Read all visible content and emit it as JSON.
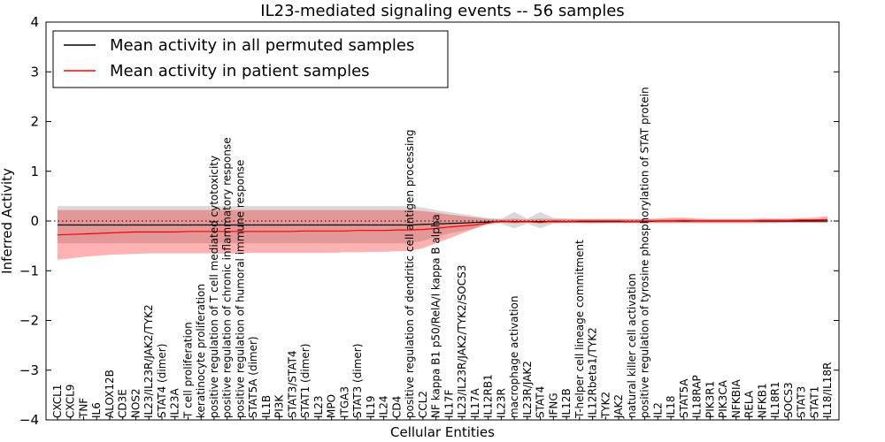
{
  "chart_data": {
    "type": "line",
    "title": "IL23-mediated signaling events -- 56 samples",
    "xlabel": "Cellular Entities",
    "ylabel": "Inferred Activity",
    "ylim": [
      -4,
      4
    ],
    "yticks": [
      -4,
      -3,
      -2,
      -1,
      0,
      1,
      2,
      3,
      4
    ],
    "grid": false,
    "legend_position": "top-left",
    "categories": [
      "CXCL1",
      "CXCL9",
      "TNF",
      "IL6",
      "ALOX12B",
      "CD3E",
      "NOS2",
      "IL23/IL23R/JAK2/TYK2",
      "STAT4 (dimer)",
      "IL23A",
      "T cell proliferation",
      "keratinocyte proliferation",
      "positive regulation of T cell mediated cytotoxicity",
      "positive regulation of chronic inflammatory response",
      "positive regulation of humoral immune response",
      "STAT5A (dimer)",
      "IL1B",
      "PI3K",
      "STAT3/STAT4",
      "STAT1 (dimer)",
      "IL23",
      "MPO",
      "ITGA3",
      "STAT3 (dimer)",
      "IL19",
      "IL24",
      "CD4",
      "positive regulation of dendritic cell antigen processing",
      "CCL2",
      "NF kappa B1 p50/RelA/I kappa B alpha",
      "IL17F",
      "IL23/IL23R/JAK2/TYK2/SOCS3",
      "IL17A",
      "IL12RB1",
      "IL23R",
      "macrophage activation",
      "IL23R/JAK2",
      "STAT4",
      "IFNG",
      "IL12B",
      "T-helper cell lineage commitment",
      "IL12Rbeta1/TYK2",
      "TYK2",
      "JAK2",
      "natural killer cell activation",
      "positive regulation of tyrosine phosphorylation of STAT protein",
      "IL2",
      "IL18",
      "STAT5A",
      "IL18RAP",
      "PIK3R1",
      "PIK3CA",
      "NFKBIA",
      "RELA",
      "NFKB1",
      "IL18R1",
      "SOCS3",
      "STAT3",
      "STAT1",
      "IL18/IL18R"
    ],
    "series": [
      {
        "name": "Mean activity in all permuted samples",
        "color": "#000000",
        "values": [
          -0.08,
          -0.08,
          -0.08,
          -0.08,
          -0.08,
          -0.08,
          -0.08,
          -0.08,
          -0.08,
          -0.08,
          -0.08,
          -0.08,
          -0.08,
          -0.08,
          -0.08,
          -0.08,
          -0.08,
          -0.08,
          -0.08,
          -0.08,
          -0.08,
          -0.08,
          -0.08,
          -0.08,
          -0.08,
          -0.08,
          -0.08,
          -0.08,
          -0.07,
          -0.06,
          -0.05,
          -0.04,
          -0.03,
          -0.02,
          -0.01,
          -0.01,
          -0.01,
          -0.01,
          -0.01,
          -0.01,
          -0.01,
          -0.01,
          -0.01,
          -0.01,
          -0.01,
          -0.01,
          0.0,
          0.0,
          0.0,
          0.0,
          0.0,
          0.0,
          0.0,
          0.0,
          0.0,
          0.0,
          0.0,
          0.0,
          0.0,
          0.0
        ],
        "band_lower": [
          -0.45,
          -0.45,
          -0.45,
          -0.45,
          -0.45,
          -0.45,
          -0.45,
          -0.45,
          -0.45,
          -0.45,
          -0.45,
          -0.45,
          -0.45,
          -0.45,
          -0.45,
          -0.45,
          -0.45,
          -0.45,
          -0.45,
          -0.45,
          -0.45,
          -0.45,
          -0.45,
          -0.45,
          -0.45,
          -0.45,
          -0.45,
          -0.45,
          -0.4,
          -0.32,
          -0.25,
          -0.2,
          -0.15,
          -0.08,
          -0.05,
          -0.15,
          -0.05,
          -0.15,
          -0.05,
          -0.04,
          -0.04,
          -0.04,
          -0.04,
          -0.04,
          -0.04,
          -0.04,
          -0.04,
          -0.04,
          -0.04,
          -0.04,
          -0.04,
          -0.04,
          -0.04,
          -0.04,
          -0.04,
          -0.04,
          -0.04,
          -0.04,
          -0.04,
          -0.04
        ],
        "band_upper": [
          0.3,
          0.3,
          0.3,
          0.3,
          0.3,
          0.3,
          0.3,
          0.3,
          0.3,
          0.3,
          0.3,
          0.3,
          0.3,
          0.3,
          0.3,
          0.3,
          0.3,
          0.3,
          0.3,
          0.3,
          0.3,
          0.3,
          0.3,
          0.3,
          0.3,
          0.3,
          0.3,
          0.3,
          0.27,
          0.22,
          0.18,
          0.14,
          0.1,
          0.06,
          0.05,
          0.18,
          0.05,
          0.18,
          0.06,
          0.05,
          0.04,
          0.04,
          0.04,
          0.04,
          0.04,
          0.04,
          0.04,
          0.04,
          0.04,
          0.04,
          0.04,
          0.04,
          0.04,
          0.04,
          0.04,
          0.04,
          0.04,
          0.04,
          0.04,
          0.04
        ]
      },
      {
        "name": "Mean activity in patient samples",
        "color": "#ff0000",
        "values": [
          -0.28,
          -0.27,
          -0.26,
          -0.25,
          -0.24,
          -0.23,
          -0.22,
          -0.22,
          -0.22,
          -0.22,
          -0.21,
          -0.21,
          -0.21,
          -0.21,
          -0.21,
          -0.21,
          -0.21,
          -0.21,
          -0.21,
          -0.2,
          -0.2,
          -0.2,
          -0.2,
          -0.19,
          -0.19,
          -0.19,
          -0.18,
          -0.18,
          -0.17,
          -0.15,
          -0.12,
          -0.1,
          -0.08,
          -0.04,
          0.0,
          -0.02,
          -0.01,
          -0.03,
          0.0,
          -0.01,
          0.0,
          0.0,
          0.0,
          0.0,
          -0.01,
          0.0,
          0.0,
          0.0,
          0.01,
          0.0,
          0.0,
          0.0,
          0.0,
          0.0,
          0.01,
          0.01,
          0.01,
          0.02,
          0.02,
          0.03
        ],
        "band_lower": [
          -0.78,
          -0.75,
          -0.72,
          -0.7,
          -0.68,
          -0.67,
          -0.66,
          -0.65,
          -0.65,
          -0.65,
          -0.65,
          -0.65,
          -0.65,
          -0.65,
          -0.65,
          -0.64,
          -0.64,
          -0.64,
          -0.64,
          -0.64,
          -0.64,
          -0.64,
          -0.63,
          -0.63,
          -0.62,
          -0.62,
          -0.61,
          -0.6,
          -0.55,
          -0.45,
          -0.35,
          -0.25,
          -0.15,
          -0.05,
          -0.03,
          -0.05,
          -0.03,
          -0.05,
          -0.04,
          -0.04,
          -0.04,
          -0.05,
          -0.04,
          -0.04,
          -0.04,
          -0.04,
          -0.04,
          -0.04,
          -0.04,
          -0.04,
          -0.04,
          -0.04,
          -0.04,
          -0.04,
          -0.04,
          -0.04,
          -0.03,
          -0.03,
          -0.03,
          -0.03
        ],
        "band_upper": [
          0.22,
          0.22,
          0.22,
          0.22,
          0.22,
          0.22,
          0.22,
          0.22,
          0.22,
          0.22,
          0.22,
          0.22,
          0.22,
          0.22,
          0.22,
          0.22,
          0.22,
          0.22,
          0.22,
          0.22,
          0.22,
          0.22,
          0.22,
          0.22,
          0.22,
          0.22,
          0.22,
          0.22,
          0.2,
          0.17,
          0.13,
          0.1,
          0.07,
          0.04,
          0.03,
          0.05,
          0.03,
          0.05,
          0.04,
          0.04,
          0.04,
          0.04,
          0.04,
          0.04,
          0.04,
          0.04,
          0.05,
          0.07,
          0.07,
          0.05,
          0.04,
          0.04,
          0.04,
          0.04,
          0.05,
          0.05,
          0.05,
          0.06,
          0.07,
          0.1
        ]
      }
    ]
  }
}
